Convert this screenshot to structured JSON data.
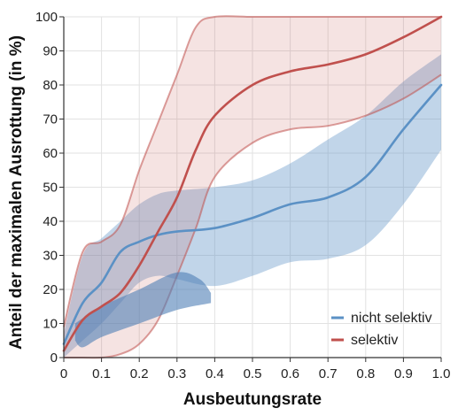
{
  "chart_data": {
    "type": "line",
    "xlabel": "Ausbeutungsrate",
    "ylabel": "Anteil der maximalen Ausrottung (in %)",
    "xlim": [
      0,
      1.0
    ],
    "ylim": [
      0,
      100
    ],
    "x_ticks": [
      "0",
      "0.1",
      "0.2",
      "0.3",
      "0.4",
      "0.5",
      "0.6",
      "0.7",
      "0.8",
      "0.9",
      "1.0"
    ],
    "y_ticks": [
      "0",
      "10",
      "20",
      "30",
      "40",
      "50",
      "60",
      "70",
      "80",
      "90",
      "100"
    ],
    "grid": true,
    "legend_position": "bottom-right",
    "series": [
      {
        "name": "nicht selektiv",
        "color": "#5b91c5",
        "x": [
          0,
          0.05,
          0.1,
          0.15,
          0.2,
          0.25,
          0.3,
          0.4,
          0.5,
          0.6,
          0.7,
          0.8,
          0.9,
          1.0
        ],
        "y": [
          4,
          16,
          22,
          31,
          34,
          36,
          37,
          38,
          41,
          45,
          47,
          53,
          67,
          80
        ],
        "lower": [
          0,
          5,
          10,
          16,
          22,
          24,
          23,
          21,
          24,
          28,
          29,
          33,
          45,
          61
        ],
        "upper": [
          7,
          30,
          35,
          40,
          45,
          48,
          49,
          50,
          52,
          57,
          64,
          71,
          81,
          89
        ]
      },
      {
        "name": "selektiv",
        "color": "#c0504d",
        "x": [
          0,
          0.05,
          0.1,
          0.15,
          0.2,
          0.25,
          0.3,
          0.35,
          0.4,
          0.5,
          0.6,
          0.7,
          0.8,
          0.9,
          1.0
        ],
        "y": [
          2,
          11,
          15,
          19,
          27,
          37,
          47,
          61,
          71,
          80,
          84,
          86,
          89,
          94,
          100
        ],
        "lower": [
          0,
          0,
          0,
          1,
          4,
          11,
          24,
          38,
          53,
          63,
          67,
          68,
          71,
          76,
          83
        ],
        "upper": [
          9,
          31,
          34,
          39,
          55,
          69,
          83,
          97,
          100,
          100,
          100,
          100,
          100,
          100,
          100
        ]
      }
    ],
    "extra_region": {
      "color": "#4e7fb5",
      "x_top": [
        0.03,
        0.1,
        0.2,
        0.3,
        0.36,
        0.39
      ],
      "y_top": [
        10,
        15,
        20,
        25,
        23,
        19
      ],
      "x_bottom": [
        0.39,
        0.3,
        0.2,
        0.1,
        0.05,
        0.03
      ],
      "y_bottom": [
        16,
        14,
        10,
        6,
        3,
        5
      ]
    }
  }
}
